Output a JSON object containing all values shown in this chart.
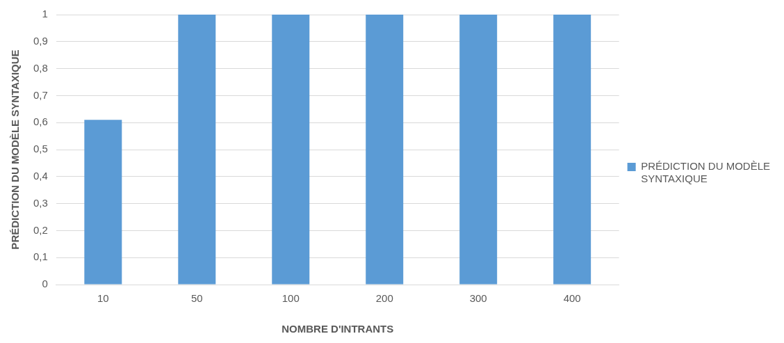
{
  "chart_data": {
    "type": "bar",
    "xlabel": "NOMBRE D'INTRANTS",
    "ylabel": "PRÉDICTION DU MODÈLE SYNTAXIQUE",
    "categories": [
      "10",
      "50",
      "100",
      "200",
      "300",
      "400"
    ],
    "series": [
      {
        "name": "PRÉDICTION DU MODÈLE SYNTAXIQUE",
        "color": "#5b9bd5",
        "values": [
          0.61,
          1,
          1,
          1,
          1,
          1
        ]
      }
    ],
    "ylim": [
      0,
      1
    ],
    "yticks": [
      0,
      {
        "value": 0.1,
        "label": "0,1"
      },
      {
        "value": 0.2,
        "label": "0,2"
      },
      {
        "value": 0.3,
        "label": "0,3"
      },
      {
        "value": 0.4,
        "label": "0,4"
      },
      {
        "value": 0.5,
        "label": "0,5"
      },
      {
        "value": 0.6,
        "label": "0,6"
      },
      {
        "value": 0.7,
        "label": "0,7"
      },
      {
        "value": 0.8,
        "label": "0,8"
      },
      {
        "value": 0.9,
        "label": "0,9"
      },
      1
    ],
    "grid": "y",
    "legend": "right"
  }
}
